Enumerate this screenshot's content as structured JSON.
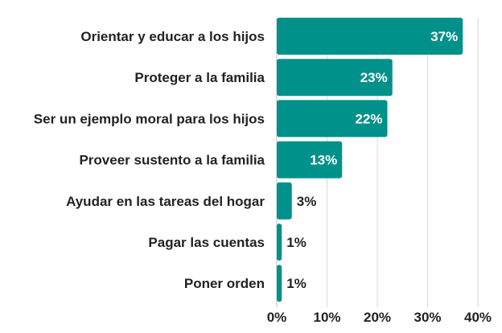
{
  "chart_data": {
    "type": "bar",
    "orientation": "horizontal",
    "categories": [
      "Orientar y educar a los hijos",
      "Proteger a la familia",
      "Ser un ejemplo moral para los hijos",
      "Proveer sustento a la familia",
      "Ayudar en las tareas del hogar",
      "Pagar las cuentas",
      "Poner orden"
    ],
    "values": [
      37,
      23,
      22,
      13,
      3,
      1,
      1
    ],
    "value_labels": [
      "37%",
      "23%",
      "22%",
      "13%",
      "3%",
      "1%",
      "1%"
    ],
    "x_ticks": [
      0,
      10,
      20,
      30,
      40
    ],
    "x_tick_labels": [
      "0%",
      "10%",
      "20%",
      "30%",
      "40%"
    ],
    "xlim": [
      0,
      40
    ],
    "grid": true,
    "legend": "none",
    "colors": {
      "bar": "#00918a",
      "label_inside": "#ffffff",
      "label_outside": "#222222"
    }
  }
}
